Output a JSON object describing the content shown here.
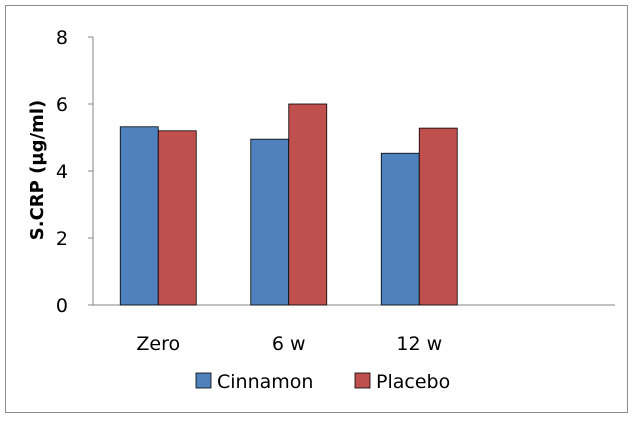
{
  "chart_data": {
    "type": "bar",
    "title": "",
    "xlabel": "",
    "ylabel": "S.CRP (µg/ml)",
    "categories": [
      "Zero",
      "6 w",
      "12 w"
    ],
    "series": [
      {
        "name": "Cinnamon",
        "values": [
          5.32,
          4.95,
          4.53
        ],
        "color": "#4f81bd"
      },
      {
        "name": "Placebo",
        "values": [
          5.2,
          6.0,
          5.28
        ],
        "color": "#c0504d"
      }
    ],
    "ylim": [
      0,
      8
    ],
    "yticks": [
      0,
      2,
      4,
      6,
      8
    ],
    "grid": false,
    "legend_position": "bottom"
  }
}
